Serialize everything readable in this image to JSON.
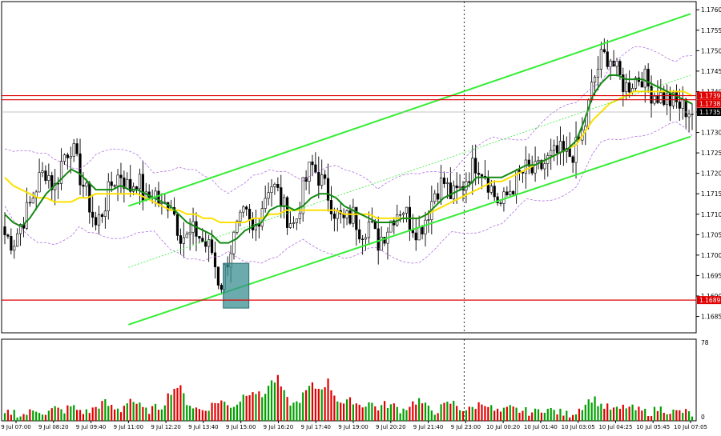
{
  "chart_data": {
    "type": "candlestick",
    "y_axis": {
      "ticks": [
        "1.1760",
        "1.1755",
        "1.1750",
        "1.1745",
        "1.1740",
        "1.1735",
        "1.1730",
        "1.1725",
        "1.1720",
        "1.1715",
        "1.1710",
        "1.1705",
        "1.1700",
        "1.1695",
        "1.1690",
        "1.1685"
      ],
      "range": [
        1.1681,
        1.1762
      ]
    },
    "x_axis": {
      "ticks": [
        "9 Jul 07:00",
        "9 Jul 08:20",
        "9 Jul 09:40",
        "9 Jul 11:00",
        "9 Jul 12:20",
        "9 Jul 13:40",
        "9 Jul 15:00",
        "9 Jul 16:20",
        "9 Jul 17:40",
        "9 Jul 19:00",
        "9 Jul 20:20",
        "9 Jul 21:40",
        "9 Jul 23:00",
        "10 Jul 00:20",
        "10 Jul 01:40",
        "10 Jul 03:05",
        "10 Jul 04:25",
        "10 Jul 05:45",
        "10 Jul 07:05"
      ]
    },
    "horizontal_levels": [
      {
        "value": 1.1739,
        "label": "1.1739",
        "color": "#e00000"
      },
      {
        "value": 1.1738,
        "label": "1.1738",
        "color": "#e00000"
      },
      {
        "value": 1.1689,
        "label": "1.1689",
        "color": "#e00000"
      }
    ],
    "current_price": {
      "value": 1.1735,
      "label": "1.1735"
    },
    "close_path": [
      1.1705,
      1.1703,
      1.1708,
      1.1712,
      1.1718,
      1.1721,
      1.1716,
      1.1724,
      1.1727,
      1.172,
      1.1714,
      1.1707,
      1.1712,
      1.1718,
      1.172,
      1.1716,
      1.1719,
      1.1713,
      1.1716,
      1.1711,
      1.1714,
      1.1706,
      1.1704,
      1.1706,
      1.1703,
      1.1701,
      1.1692,
      1.17,
      1.1706,
      1.171,
      1.1705,
      1.1712,
      1.1718,
      1.1715,
      1.171,
      1.1707,
      1.1716,
      1.1722,
      1.1719,
      1.1715,
      1.171,
      1.1708,
      1.171,
      1.1706,
      1.1708,
      1.1703,
      1.1706,
      1.171,
      1.1712,
      1.1708,
      1.1706,
      1.171,
      1.1716,
      1.1718,
      1.1714,
      1.1716,
      1.172,
      1.1723,
      1.172,
      1.1715,
      1.1712,
      1.1716,
      1.1719,
      1.1721,
      1.172,
      1.1722,
      1.1724,
      1.1725,
      1.1724,
      1.1726,
      1.1731,
      1.1742,
      1.1748,
      1.1749,
      1.1744,
      1.1741,
      1.1743,
      1.1744,
      1.174,
      1.1739,
      1.1738,
      1.1737,
      1.1736,
      1.1735
    ],
    "overlays": [
      {
        "name": "",
        "color": "#ffe000",
        "values": [
          1.1719,
          1.1717,
          1.1716,
          1.1715,
          1.1714,
          1.1714,
          1.1713,
          1.1713,
          1.1713,
          1.1714,
          1.1714,
          1.1715,
          1.1715,
          1.1715,
          1.1715,
          1.1715,
          1.1715,
          1.1714,
          1.1713,
          1.1712,
          1.1711,
          1.1711,
          1.171,
          1.171,
          1.1709,
          1.1709,
          1.1708,
          1.1708,
          1.1708,
          1.1708,
          1.1709,
          1.1709,
          1.171,
          1.171,
          1.1711,
          1.1711,
          1.1711,
          1.1711,
          1.1711,
          1.1711,
          1.1711,
          1.171,
          1.171,
          1.171,
          1.171,
          1.1709,
          1.1709,
          1.1709,
          1.1709,
          1.1709,
          1.1709,
          1.171,
          1.1711,
          1.1712,
          1.1713,
          1.1714,
          1.1715,
          1.1716,
          1.1717,
          1.1718,
          1.1718,
          1.1719,
          1.172,
          1.1721,
          1.1722,
          1.1723,
          1.1724,
          1.1725,
          1.1726,
          1.1727,
          1.173,
          1.1733,
          1.1735,
          1.1737,
          1.1738,
          1.1739,
          1.174,
          1.174,
          1.174,
          1.174,
          1.174,
          1.174,
          1.174,
          1.1739
        ]
      },
      {
        "name": "",
        "color": "#138a13",
        "values": [
          1.171,
          1.1708,
          1.1707,
          1.1709,
          1.1712,
          1.1715,
          1.1717,
          1.1719,
          1.1721,
          1.172,
          1.1718,
          1.1716,
          1.1716,
          1.1716,
          1.1717,
          1.1716,
          1.1716,
          1.1715,
          1.1714,
          1.1713,
          1.1712,
          1.171,
          1.1708,
          1.1707,
          1.1706,
          1.1705,
          1.1703,
          1.1703,
          1.1704,
          1.1706,
          1.1707,
          1.1708,
          1.1711,
          1.1712,
          1.1712,
          1.1711,
          1.1712,
          1.1714,
          1.1715,
          1.1715,
          1.1714,
          1.1712,
          1.1711,
          1.171,
          1.1709,
          1.1708,
          1.1708,
          1.1708,
          1.1709,
          1.1709,
          1.1709,
          1.171,
          1.1712,
          1.1714,
          1.1715,
          1.1716,
          1.1717,
          1.1719,
          1.1719,
          1.1719,
          1.1719,
          1.172,
          1.1721,
          1.1722,
          1.1722,
          1.1723,
          1.1724,
          1.1725,
          1.1726,
          1.1728,
          1.1733,
          1.1739,
          1.1742,
          1.1744,
          1.1744,
          1.1743,
          1.1743,
          1.1743,
          1.1742,
          1.1741,
          1.174,
          1.1739,
          1.1738,
          1.1737
        ]
      }
    ],
    "trend_lines": [
      {
        "kind": "channel-upper",
        "from": [
          "9 Jul 11:00",
          1.1712
        ],
        "to": [
          "10 Jul 07:05",
          1.1759
        ]
      },
      {
        "kind": "channel-lower",
        "from": [
          "9 Jul 11:00",
          1.1683
        ],
        "to": [
          "10 Jul 07:05",
          1.1729
        ]
      }
    ],
    "highlight_box": {
      "x": "9 Jul 15:00",
      "y_range": [
        1.1689,
        1.1698
      ]
    },
    "volume_axis": {
      "ticks": [
        "78",
        "0"
      ],
      "max": 78
    },
    "volumes": [
      6,
      9,
      5,
      8,
      11,
      7,
      12,
      9,
      14,
      10,
      8,
      13,
      18,
      12,
      10,
      22,
      16,
      9,
      12,
      14,
      28,
      34,
      18,
      12,
      10,
      15,
      20,
      14,
      16,
      26,
      30,
      22,
      36,
      40,
      20,
      15,
      24,
      34,
      30,
      38,
      22,
      16,
      20,
      14,
      18,
      12,
      16,
      14,
      10,
      16,
      20,
      12,
      9,
      14,
      18,
      12,
      10,
      15,
      18,
      10,
      8,
      12,
      10,
      9,
      8,
      12,
      10,
      8,
      6,
      9,
      16,
      22,
      15,
      12,
      10,
      14,
      11,
      9,
      8,
      12,
      10,
      8,
      9,
      6
    ]
  }
}
